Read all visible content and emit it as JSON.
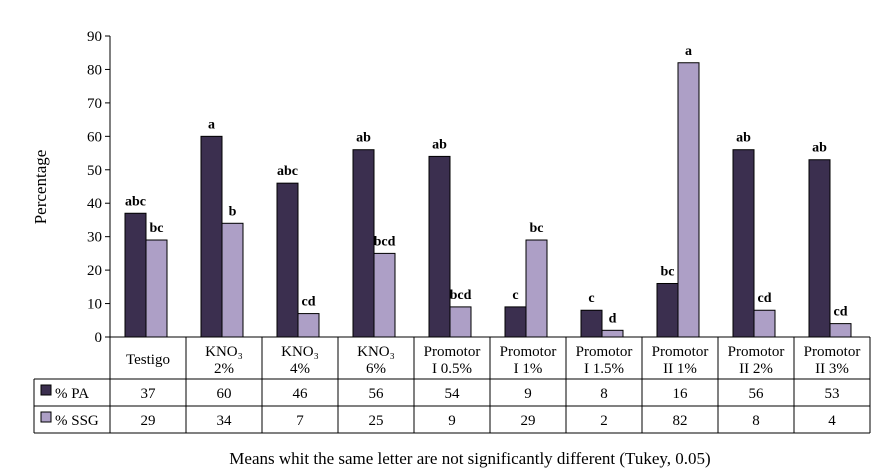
{
  "chart_data": {
    "type": "bar",
    "ylabel": "Percentage",
    "ylim": [
      0,
      90
    ],
    "yticks": [
      0,
      10,
      20,
      30,
      40,
      50,
      60,
      70,
      80,
      90
    ],
    "grid": false,
    "legend": "table-left",
    "categories": [
      [
        "Testigo"
      ],
      [
        "KNO₃",
        "2%"
      ],
      [
        "KNO₃",
        "4%"
      ],
      [
        "KNO₃",
        "6%"
      ],
      [
        "Promotor",
        "I 0.5%"
      ],
      [
        "Promotor",
        "I 1%"
      ],
      [
        "Promotor",
        "I 1.5%"
      ],
      [
        "Promotor",
        "II 1%"
      ],
      [
        "Promotor",
        "II 2%"
      ],
      [
        "Promotor",
        "II 3%"
      ]
    ],
    "series": [
      {
        "name": "% PA",
        "color": "#3b2f4f",
        "values": [
          37,
          60,
          46,
          56,
          54,
          9,
          8,
          16,
          56,
          53
        ],
        "letters": [
          "abc",
          "a",
          "abc",
          "ab",
          "ab",
          "c",
          "c",
          "bc",
          "ab",
          "ab"
        ]
      },
      {
        "name": "% SSG",
        "color": "#ad9fc6",
        "values": [
          29,
          34,
          7,
          25,
          9,
          29,
          2,
          82,
          8,
          4
        ],
        "letters": [
          "bc",
          "b",
          "cd",
          "bcd",
          "bcd",
          "bc",
          "d",
          "a",
          "cd",
          "cd"
        ]
      }
    ],
    "footnote": "Means whit the same letter are not significantly different (Tukey, 0.05)"
  }
}
